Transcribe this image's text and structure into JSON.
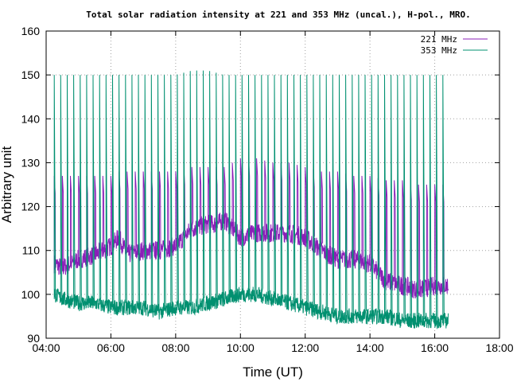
{
  "chart_data": {
    "type": "line",
    "title": "Total solar radiation intensity at 221 and 353 MHz (uncal.), H-pol., MRO.",
    "xlabel": "Time (UT)",
    "ylabel": "Arbitrary unit",
    "xlim": [
      "04:00",
      "18:00"
    ],
    "ylim": [
      90,
      160
    ],
    "x_ticks": [
      "04:00",
      "06:00",
      "08:00",
      "10:00",
      "12:00",
      "14:00",
      "16:00",
      "18:00"
    ],
    "y_ticks": [
      90,
      100,
      110,
      120,
      130,
      140,
      150,
      160
    ],
    "grid": true,
    "legend_position": "top-right",
    "series": [
      {
        "name": "221 MHz",
        "color": "#8b1fb8",
        "x": [
          "04:15",
          "04:30",
          "05:00",
          "05:30",
          "05:45",
          "06:00",
          "06:15",
          "06:30",
          "07:00",
          "07:30",
          "08:00",
          "08:15",
          "08:30",
          "09:00",
          "09:15",
          "09:30",
          "09:45",
          "10:00",
          "10:30",
          "11:00",
          "11:30",
          "12:00",
          "12:30",
          "13:00",
          "13:30",
          "14:00",
          "14:30",
          "15:00",
          "15:30",
          "16:00",
          "16:25"
        ],
        "values": [
          107,
          106,
          108,
          109,
          110,
          111,
          113,
          109,
          110,
          110,
          111,
          113,
          115,
          116,
          116,
          117,
          115,
          113,
          114,
          114,
          114,
          113,
          110,
          108,
          108,
          107,
          103,
          102,
          101,
          102,
          102
        ],
        "spike_values": [
          127,
          127,
          127,
          127,
          127,
          127,
          128,
          128,
          128,
          128,
          128,
          129,
          129,
          129,
          129,
          129,
          130,
          131,
          131,
          130,
          130,
          129,
          128,
          128,
          127,
          127,
          126,
          126,
          125,
          125,
          125
        ]
      },
      {
        "name": "353 MHz",
        "color": "#009070",
        "x": [
          "04:15",
          "04:30",
          "05:00",
          "05:30",
          "06:00",
          "06:30",
          "07:00",
          "07:30",
          "08:00",
          "08:30",
          "09:00",
          "09:30",
          "10:00",
          "10:30",
          "11:00",
          "11:30",
          "12:00",
          "12:30",
          "13:00",
          "13:30",
          "14:00",
          "14:30",
          "15:00",
          "15:30",
          "16:00",
          "16:25"
        ],
        "values": [
          100,
          99,
          98,
          98,
          97,
          97,
          97,
          96,
          97,
          97,
          98,
          99,
          100,
          100,
          99,
          98,
          97,
          96,
          95,
          95,
          95,
          95,
          94,
          94,
          94,
          94
        ],
        "spike_values": [
          150,
          150,
          150,
          150,
          150,
          150,
          150,
          150,
          150,
          151,
          151,
          150,
          150,
          150,
          150,
          150,
          150,
          150,
          150,
          150,
          150,
          150,
          150,
          150,
          150,
          150
        ]
      }
    ]
  }
}
